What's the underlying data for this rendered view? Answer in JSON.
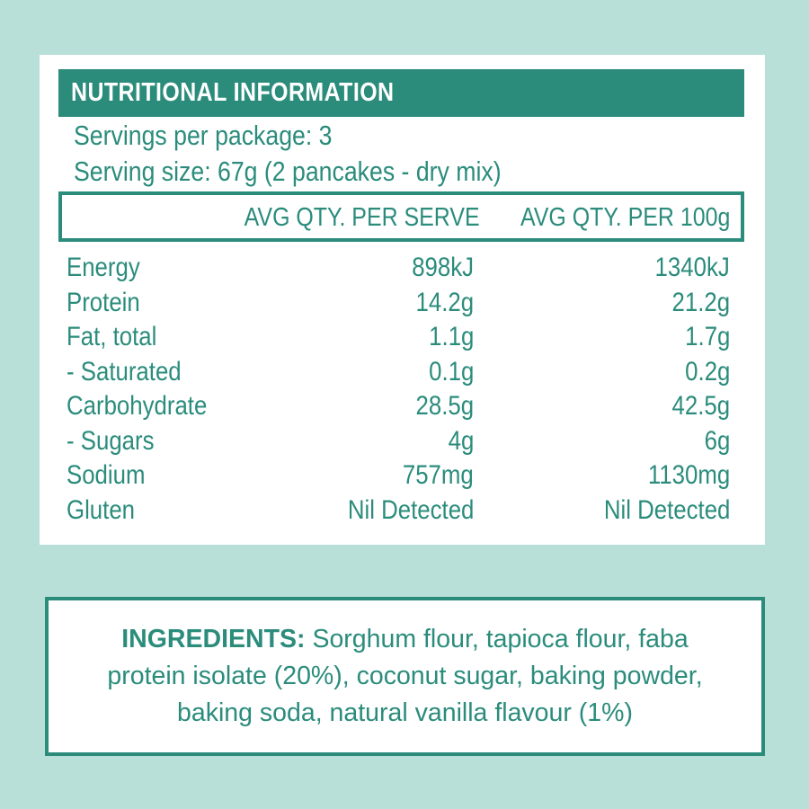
{
  "nutrition": {
    "title": "NUTRITIONAL INFORMATION",
    "servings_per_package": "Servings per package: 3",
    "serving_size": "Serving size: 67g (2 pancakes - dry mix)",
    "columns": {
      "per_serve": "AVG QTY. PER SERVE",
      "per_100g": "AVG QTY. PER 100g"
    },
    "rows": [
      {
        "name": "Energy",
        "per_serve": "898kJ",
        "per_100g": "1340kJ"
      },
      {
        "name": "Protein",
        "per_serve": "14.2g",
        "per_100g": "21.2g"
      },
      {
        "name": "Fat, total",
        "per_serve": "1.1g",
        "per_100g": "1.7g"
      },
      {
        "name": "- Saturated",
        "per_serve": "0.1g",
        "per_100g": "0.2g"
      },
      {
        "name": "Carbohydrate",
        "per_serve": "28.5g",
        "per_100g": "42.5g"
      },
      {
        "name": "- Sugars",
        "per_serve": "4g",
        "per_100g": "6g"
      },
      {
        "name": "Sodium",
        "per_serve": "757mg",
        "per_100g": "1130mg"
      },
      {
        "name": "Gluten",
        "per_serve": "Nil Detected",
        "per_100g": "Nil Detected"
      }
    ]
  },
  "ingredients": {
    "label": "INGREDIENTS:",
    "text": " Sorghum flour, tapioca flour, faba protein isolate (20%), coconut sugar, baking powder, baking soda, natural vanilla flavour (1%)"
  },
  "colors": {
    "background": "#b8dfd8",
    "accent": "#2b8c7c",
    "panel": "#ffffff"
  }
}
